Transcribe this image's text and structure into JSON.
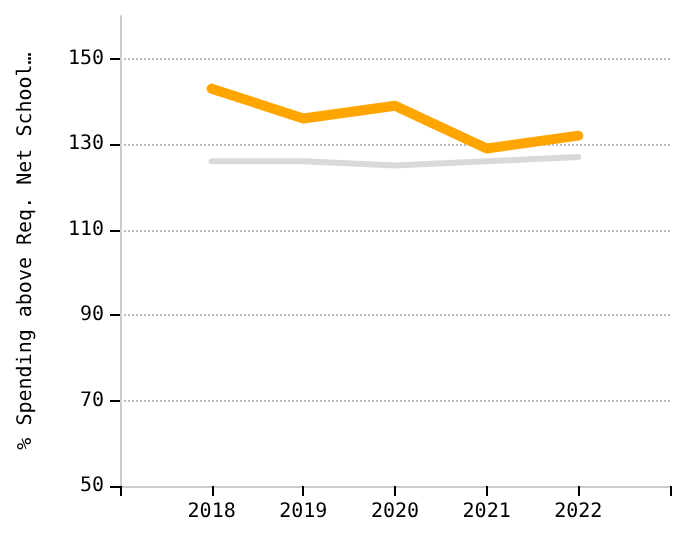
{
  "chart_data": {
    "type": "line",
    "ylabel": "% Spending above Req. Net School…",
    "categories": [
      "2018",
      "2019",
      "2020",
      "2021",
      "2022"
    ],
    "series": [
      {
        "color": "#ffa500",
        "values": [
          143,
          136,
          139,
          129,
          132
        ]
      },
      {
        "color": "#d9d9d9",
        "values": [
          126,
          126,
          125,
          126,
          127
        ]
      }
    ],
    "ylim": [
      50,
      160
    ],
    "yticks": [
      50,
      70,
      90,
      110,
      130,
      150
    ],
    "grid": "y",
    "marker": "none",
    "line_style": "solid"
  }
}
